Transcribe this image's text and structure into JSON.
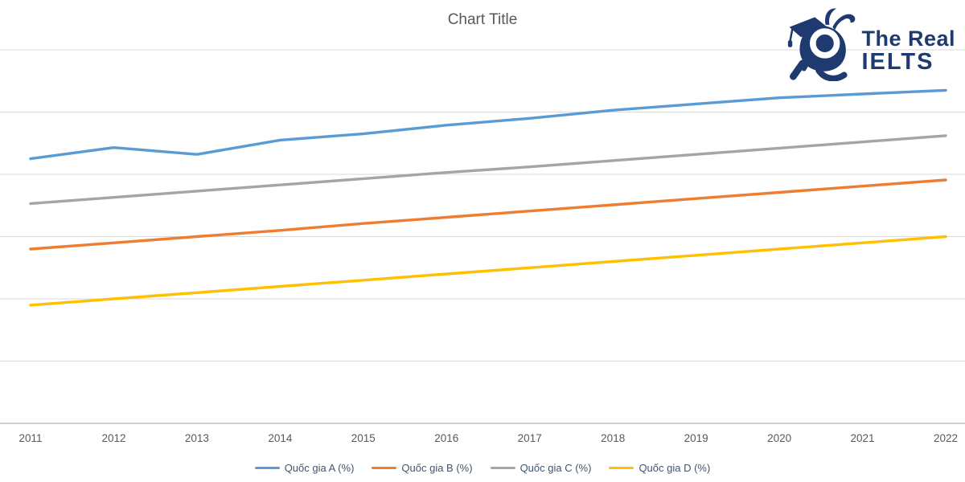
{
  "title": "Chart Title",
  "logo": {
    "line1": "The Real",
    "line2": "IELTS",
    "mascot_icon": "snail-graduate-icon",
    "color": "#1F3A6E"
  },
  "colors": {
    "background": "#FFFFFF",
    "gridline": "#D9D9D9",
    "axis_line": "#BFBFBF",
    "title_text": "#595959",
    "axis_text": "#595959",
    "legend_text": "#44546A"
  },
  "chart_data": {
    "type": "line",
    "title": "Chart Title",
    "x": [
      2011,
      2012,
      2013,
      2014,
      2015,
      2016,
      2017,
      2018,
      2019,
      2020,
      2021,
      2022
    ],
    "series": [
      {
        "name": "Quốc gia A (%)",
        "color": "#5B9BD5",
        "values": [
          42.5,
          44.3,
          43.2,
          45.5,
          46.5,
          47.9,
          49.0,
          50.3,
          51.3,
          52.3,
          52.9,
          53.5
        ]
      },
      {
        "name": "Quốc gia B (%)",
        "color": "#ED7D31",
        "values": [
          28.0,
          29.0,
          30.0,
          31.0,
          32.1,
          33.1,
          34.1,
          35.1,
          36.1,
          37.1,
          38.1,
          39.1
        ]
      },
      {
        "name": "Quốc gia C (%)",
        "color": "#A5A5A5",
        "values": [
          35.3,
          36.3,
          37.3,
          38.3,
          39.3,
          40.3,
          41.2,
          42.2,
          43.2,
          44.2,
          45.2,
          46.2
        ]
      },
      {
        "name": "Quốc gia D (%)",
        "color": "#FFC000",
        "values": [
          19.0,
          20.0,
          21.0,
          22.0,
          23.0,
          24.0,
          25.0,
          26.0,
          27.0,
          28.0,
          29.0,
          30.0
        ]
      }
    ],
    "ylim": [
      0,
      60
    ],
    "y_gridline_step": 10,
    "y_axis_labels_visible": false,
    "grid": true,
    "legend_position": "bottom"
  }
}
